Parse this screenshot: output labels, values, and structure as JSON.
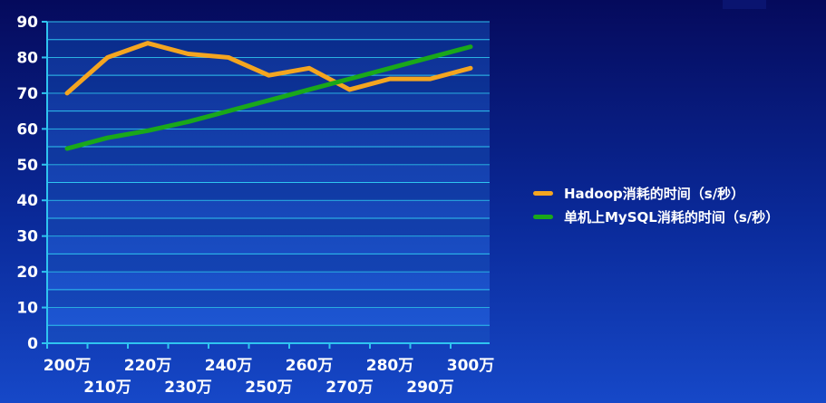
{
  "chart_data": {
    "type": "line",
    "x": [
      "200万",
      "210万",
      "220万",
      "230万",
      "240万",
      "250万",
      "260万",
      "270万",
      "280万",
      "290万",
      "300万"
    ],
    "series": [
      {
        "name": "Hadoop消耗的时间（s/秒）",
        "color": "#f4a520",
        "points": [
          [
            0,
            70
          ],
          [
            1,
            80
          ],
          [
            2,
            84
          ],
          [
            3,
            81
          ],
          [
            4,
            80
          ],
          [
            5,
            75
          ],
          [
            6,
            77
          ],
          [
            7,
            71
          ],
          [
            8,
            74
          ],
          [
            9,
            74
          ],
          [
            10,
            77
          ]
        ]
      },
      {
        "name": "单机上MySQL消耗的时间（s/秒）",
        "color": "#1aa81a",
        "points": [
          [
            0,
            54.5
          ],
          [
            1,
            57.5
          ],
          [
            2,
            59.5
          ],
          [
            3,
            62
          ],
          [
            4,
            65
          ],
          [
            5,
            68
          ],
          [
            6,
            71
          ],
          [
            7,
            74
          ],
          [
            8,
            77
          ],
          [
            9,
            80
          ],
          [
            10,
            83
          ]
        ]
      }
    ],
    "yticks": [
      "0",
      "10",
      "20",
      "30",
      "40",
      "50",
      "60",
      "70",
      "80",
      "90"
    ],
    "ylim": [
      0,
      90
    ],
    "grid": true,
    "legend_position": "right"
  }
}
